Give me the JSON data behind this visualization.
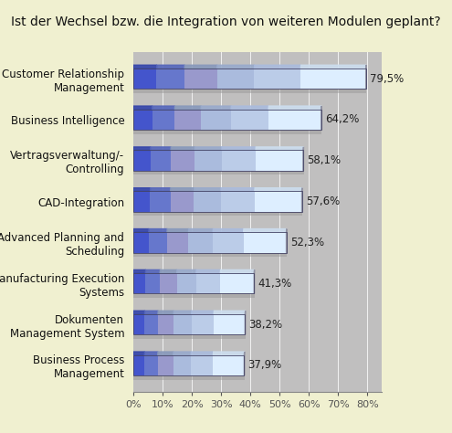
{
  "title": "Ist der Wechsel bzw. die Integration von weiteren Modulen geplant?",
  "categories": [
    "Business Process\nManagement",
    "Dokumenten\nManagement System",
    "Manufacturing Execution\nSystems",
    "Advanced Planning and\nScheduling",
    "CAD-Integration",
    "Vertragsverwaltung/-\nControlling",
    "Business Intelligence",
    "Customer Relationship\nManagement"
  ],
  "values": [
    37.9,
    38.2,
    41.3,
    52.3,
    57.6,
    58.1,
    64.2,
    79.5
  ],
  "labels": [
    "37,9%",
    "38,2%",
    "41,3%",
    "52,3%",
    "57,6%",
    "58,1%",
    "64,2%",
    "79,5%"
  ],
  "fig_bg_color": "#f0f0d0",
  "plot_bg_color": "#c8c8c8",
  "bar_top_colors": [
    "#4455bb",
    "#7788cc",
    "#aabbcc",
    "#bbccdd",
    "#ccdde8",
    "#ddeef5"
  ],
  "bar_bot_colors": [
    "#5566cc",
    "#8899dd",
    "#aabbdd",
    "#bbccee",
    "#ccddf0",
    "#eef5ff"
  ],
  "title_fontsize": 10,
  "label_fontsize": 8.5,
  "tick_fontsize": 8,
  "xlim": [
    0,
    85
  ],
  "xticks": [
    0,
    10,
    20,
    30,
    40,
    50,
    60,
    70,
    80
  ],
  "xtick_labels": [
    "0%",
    "10%",
    "20%",
    "30%",
    "40%",
    "50%",
    "60%",
    "70%",
    "80%"
  ]
}
